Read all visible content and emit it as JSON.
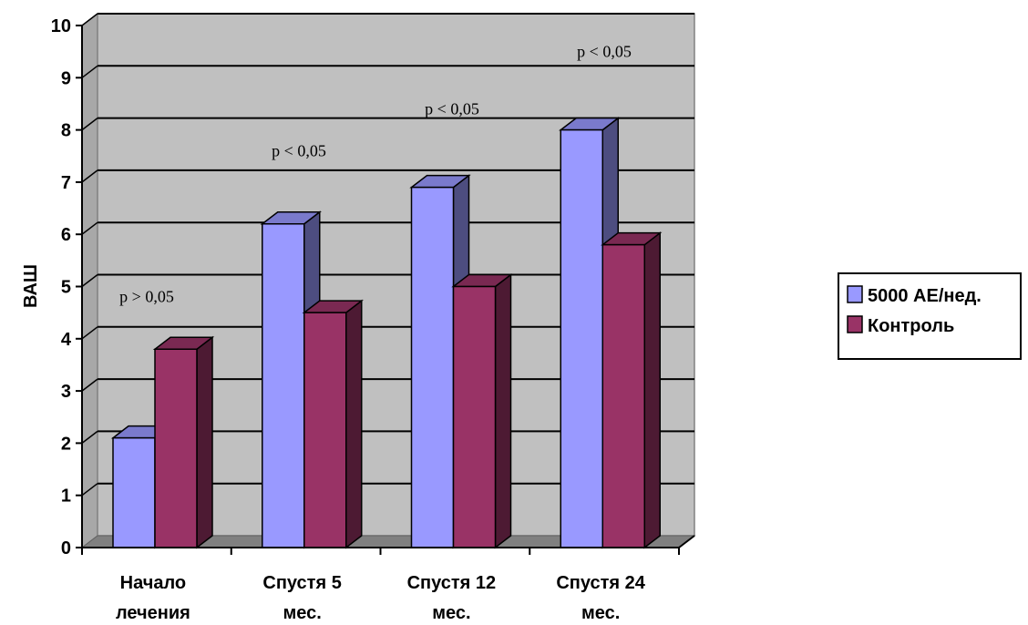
{
  "chart_data": {
    "type": "bar",
    "categories": [
      [
        "Начало",
        "лечения"
      ],
      [
        "Спустя 5",
        "мес."
      ],
      [
        "Спустя 12",
        "мес."
      ],
      [
        "Спустя 24",
        "мес."
      ]
    ],
    "series": [
      {
        "name": "5000 АЕ/нед.",
        "values": [
          2.1,
          6.2,
          6.9,
          8.0
        ],
        "color": "#9999ff"
      },
      {
        "name": "Контроль",
        "values": [
          3.8,
          4.5,
          5.0,
          5.8
        ],
        "color": "#993366"
      }
    ],
    "annotations": [
      "p > 0,05",
      "p < 0,05",
      "p < 0,05",
      "p < 0,05"
    ],
    "ylabel": "ВАШ",
    "xlabel": "",
    "title": "",
    "ylim": [
      0,
      10
    ],
    "yticks": [
      "0",
      "1",
      "2",
      "3",
      "4",
      "5",
      "6",
      "7",
      "8",
      "9",
      "10"
    ],
    "grid": true,
    "three_d": true,
    "legend_position": "right",
    "plot_background": "#c0c0c0",
    "floor_color": "#808080"
  }
}
